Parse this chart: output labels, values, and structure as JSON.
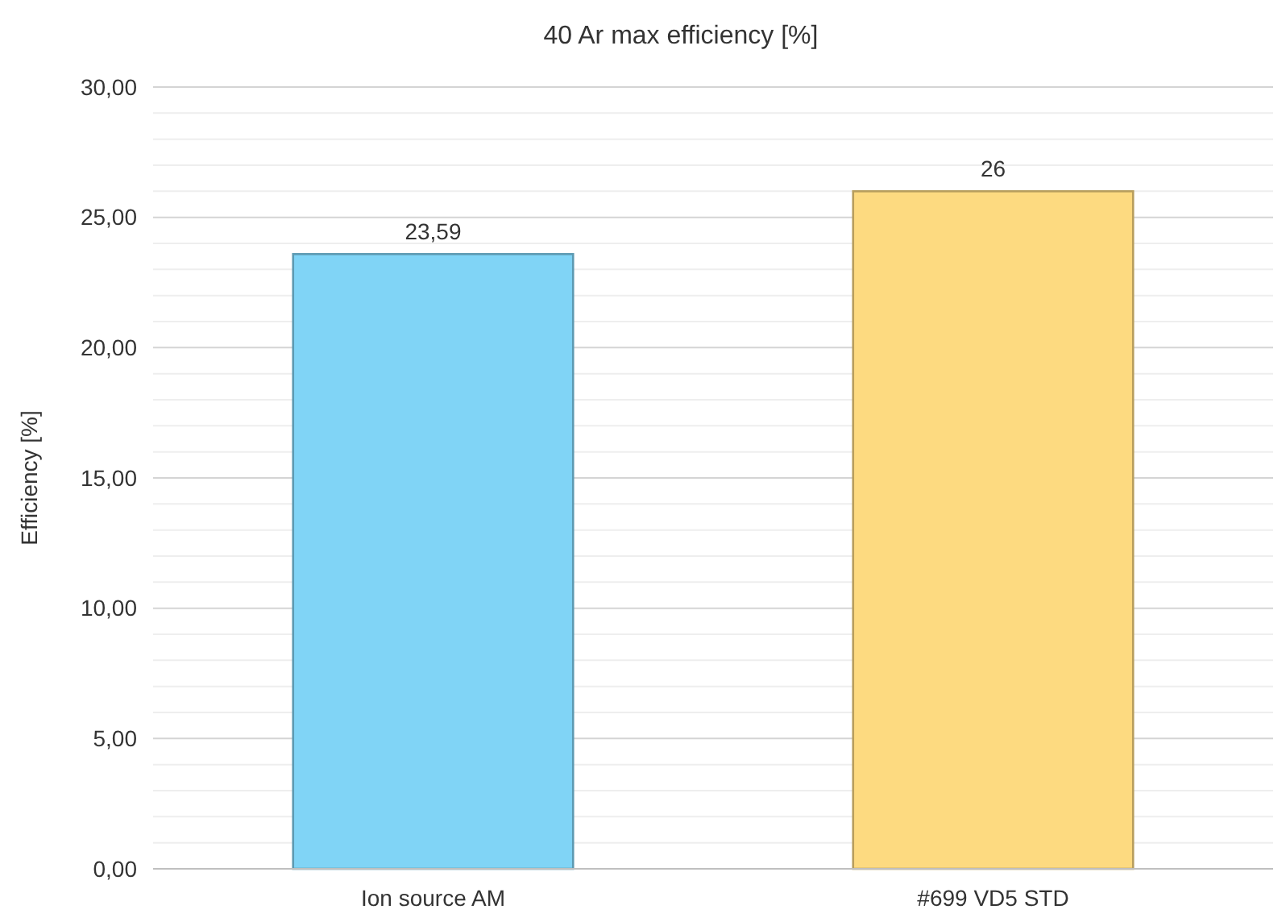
{
  "chart_data": {
    "type": "bar",
    "title": "40 Ar max efficiency [%]",
    "ylabel": "Efficiency [%]",
    "categories": [
      "Ion source AM",
      "#699 VD5 STD"
    ],
    "values": [
      23.59,
      26
    ],
    "value_labels": [
      "23,59",
      "26"
    ],
    "colors": [
      "#80d4f6",
      "#fdda80"
    ],
    "ylim": [
      0,
      30
    ],
    "yticks": [
      {
        "value": 0,
        "label": "0,00"
      },
      {
        "value": 1,
        "label": null
      },
      {
        "value": 2,
        "label": null
      },
      {
        "value": 3,
        "label": null
      },
      {
        "value": 4,
        "label": null
      },
      {
        "value": 5,
        "label": "5,00"
      },
      {
        "value": 6,
        "label": null
      },
      {
        "value": 7,
        "label": null
      },
      {
        "value": 8,
        "label": null
      },
      {
        "value": 9,
        "label": null
      },
      {
        "value": 10,
        "label": "10,00"
      },
      {
        "value": 11,
        "label": null
      },
      {
        "value": 12,
        "label": null
      },
      {
        "value": 13,
        "label": null
      },
      {
        "value": 14,
        "label": null
      },
      {
        "value": 15,
        "label": "15,00"
      },
      {
        "value": 16,
        "label": null
      },
      {
        "value": 17,
        "label": null
      },
      {
        "value": 18,
        "label": null
      },
      {
        "value": 19,
        "label": null
      },
      {
        "value": 20,
        "label": "20,00"
      },
      {
        "value": 21,
        "label": null
      },
      {
        "value": 22,
        "label": null
      },
      {
        "value": 23,
        "label": null
      },
      {
        "value": 24,
        "label": null
      },
      {
        "value": 25,
        "label": "25,00"
      },
      {
        "value": 26,
        "label": null
      },
      {
        "value": 27,
        "label": null
      },
      {
        "value": 28,
        "label": null
      },
      {
        "value": 29,
        "label": null
      },
      {
        "value": 30,
        "label": "30,00"
      }
    ],
    "grid": "y"
  }
}
